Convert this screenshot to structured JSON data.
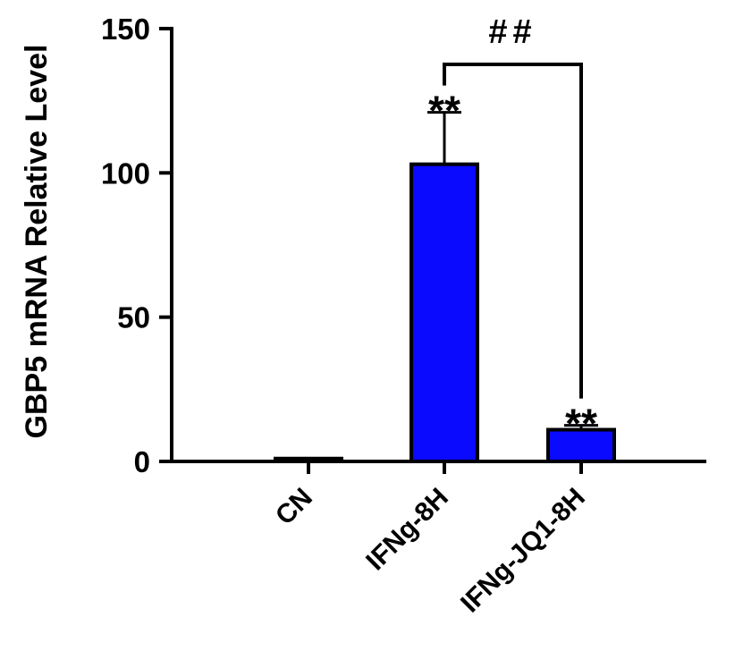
{
  "chart_data": {
    "type": "bar",
    "ylabel": "GBP5 mRNA Relative Level",
    "xlabel": "",
    "ylim": [
      0,
      150
    ],
    "yticks": [
      0,
      50,
      100,
      150
    ],
    "ytick_labels": [
      "0",
      "50",
      "100",
      "150"
    ],
    "categories": [
      "CN",
      "IFNg-8H",
      "IFNg-JQ1-8H"
    ],
    "values": [
      1,
      103,
      11
    ],
    "errors": [
      0,
      18,
      1.5
    ],
    "significance": [
      "",
      "**",
      "**"
    ],
    "comparison": {
      "from": "IFNg-8H",
      "to": "IFNg-JQ1-8H",
      "label": "##"
    },
    "bar_color": "#0a0aff",
    "edge_color": "#000000",
    "grid": false,
    "legend": "none"
  }
}
